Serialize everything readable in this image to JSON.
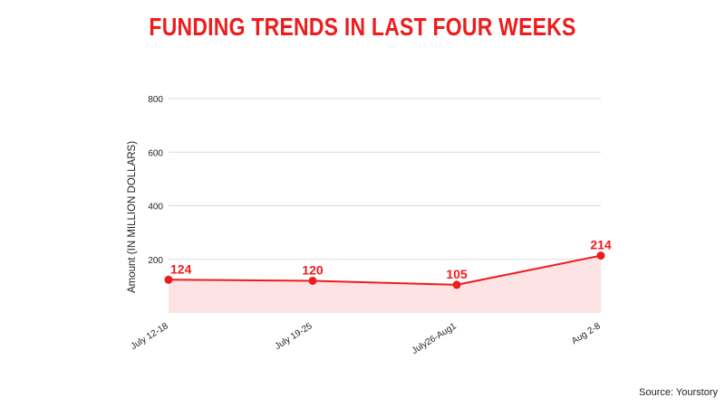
{
  "colors": {
    "accent": "#ee1c1c",
    "area_fill": "#fde3e3",
    "grid": "#d9d9d9"
  },
  "source_text": "Source: Yourstory",
  "chart_data": {
    "type": "line",
    "title": "FUNDING TRENDS IN LAST FOUR WEEKS",
    "xlabel": "",
    "ylabel": "Amount (IN MILLION DOLLARS)",
    "categories": [
      "July 12-18",
      "July 19-25",
      "July26-Aug1",
      "Aug 2-8"
    ],
    "series": [
      {
        "values": [
          124,
          120,
          105,
          214
        ],
        "data_labels": [
          "124",
          "120",
          "105",
          "214"
        ]
      }
    ],
    "ylim": [
      0,
      800
    ],
    "yticks": [
      200,
      400,
      600,
      800
    ],
    "grid": true,
    "area_fill": true,
    "legend": "none"
  }
}
